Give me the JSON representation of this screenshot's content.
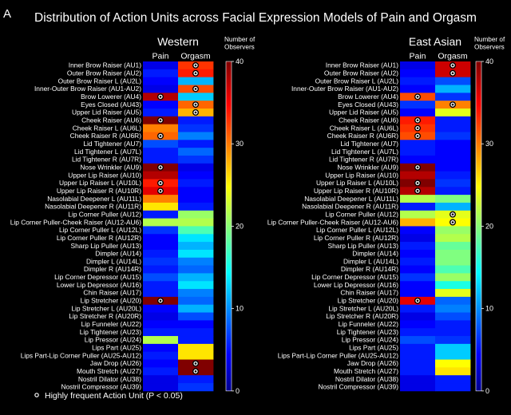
{
  "panel_letter": "A",
  "legend_note": "Highly frequent Action Unit (P < 0.05)",
  "chart_data": {
    "type": "heatmap",
    "title": "Distribution of Action Units across Facial Expression Models of Pain and Orgasm",
    "colorbar": {
      "label": "Number of Observers",
      "min": 0,
      "max": 40,
      "ticks": [
        0,
        10,
        20,
        30,
        40
      ]
    },
    "columns": [
      "Pain",
      "Orgasm"
    ],
    "rows": [
      "Inner Brow Raiser (AU1)",
      "Outer Brow Raiser (AU2)",
      "Outer Brow Raiser L (AU2L)",
      "Inner-Outer Brow Raiser (AU1-AU2)",
      "Brow Lowerer (AU4)",
      "Eyes Closed (AU43)",
      "Upper Lid Raiser (AU5)",
      "Cheek Raiser (AU6)",
      "Cheek Raiser L (AU6L)",
      "Cheek Raiser R (AU6R)",
      "Lid Tightener (AU7)",
      "Lid Tightener L (AU7L)",
      "Lid Tightener R (AU7R)",
      "Nose Wrinkler (AU9)",
      "Upper Lip Raiser (AU10)",
      "Upper Lip Raiser L (AU10L)",
      "Upper Lip Raiser R (AU10R)",
      "Nasolabial Deepener L (AU11L)",
      "Nasolabial Deepener R (AU11R)",
      "Lip Corner Puller (AU12)",
      "Lip Corner Puller-Cheek Raiser (AU12-AU6)",
      "Lip Corner Puller L (AU12L)",
      "Lip Corner Puller R (AU12R)",
      "Sharp Lip Puller (AU13)",
      "Dimpler (AU14)",
      "Dimpler L (AU14L)",
      "Dimpler R (AU14R)",
      "Lip Corner Depressor (AU15)",
      "Lower Lip Depressor (AU16)",
      "Chin Raiser (AU17)",
      "Lip Stretcher (AU20)",
      "Lip Stretcher L (AU20L)",
      "Lip Stretcher R (AU20R)",
      "Lip Funneler (AU22)",
      "Lip Tightener (AU23)",
      "Lip Pressor (AU24)",
      "Lips Part (AU25)",
      "Lips Part-Lip Corner Puller (AU25-AU12)",
      "Jaw Drop (AU26)",
      "Mouth Stretch (AU27)",
      "Nostril Dilator (AU38)",
      "Nostril Compressor (AU39)"
    ],
    "panels": [
      {
        "name": "Western",
        "values": {
          "Pain": [
            4,
            6,
            5,
            4,
            38,
            5,
            6,
            40,
            30,
            31,
            8,
            6,
            6,
            40,
            38,
            34,
            36,
            30,
            26,
            6,
            22,
            7,
            5,
            5,
            6,
            7,
            6,
            8,
            6,
            6,
            42,
            5,
            4,
            5,
            6,
            22,
            5,
            6,
            5,
            6,
            4,
            4
          ],
          "Orgasm": [
            33,
            34,
            12,
            32,
            13,
            31,
            28,
            6,
            7,
            10,
            6,
            9,
            7,
            4,
            5,
            6,
            5,
            5,
            6,
            21,
            22,
            18,
            14,
            12,
            14,
            10,
            9,
            12,
            14,
            10,
            9,
            12,
            8,
            5,
            6,
            6,
            26,
            26,
            40,
            40,
            6,
            7
          ]
        },
        "significant": {
          "Pain": [
            4,
            7,
            9,
            13,
            15,
            16,
            30
          ],
          "Orgasm": [
            0,
            1,
            3,
            5,
            6,
            38,
            39
          ]
        }
      },
      {
        "name": "East Asian",
        "values": {
          "Pain": [
            4,
            5,
            6,
            5,
            32,
            7,
            5,
            34,
            33,
            32,
            6,
            6,
            5,
            44,
            38,
            40,
            38,
            22,
            6,
            22,
            28,
            5,
            4,
            6,
            5,
            6,
            5,
            7,
            5,
            5,
            36,
            6,
            4,
            5,
            6,
            8,
            6,
            6,
            6,
            6,
            4,
            4
          ],
          "Orgasm": [
            37,
            37,
            8,
            12,
            7,
            30,
            24,
            6,
            6,
            7,
            5,
            5,
            5,
            5,
            6,
            7,
            6,
            20,
            12,
            24,
            25,
            21,
            22,
            19,
            20,
            20,
            18,
            21,
            16,
            24,
            9,
            10,
            8,
            6,
            6,
            7,
            13,
            13,
            25,
            26,
            6,
            6
          ]
        },
        "significant": {
          "Pain": [
            4,
            7,
            8,
            9,
            13,
            15,
            16,
            30
          ],
          "Orgasm": [
            0,
            1,
            5,
            19,
            20
          ]
        }
      }
    ]
  }
}
